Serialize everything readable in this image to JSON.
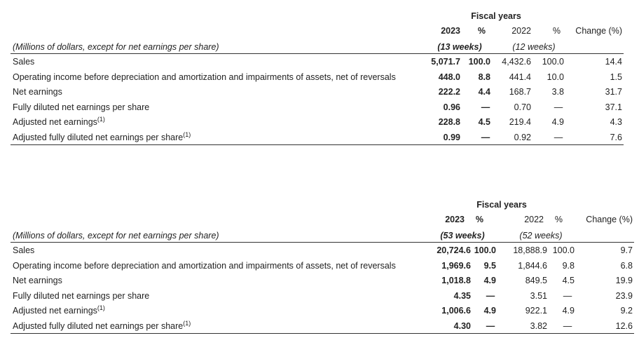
{
  "tables": [
    {
      "title": "Fiscal years",
      "headers": [
        "2023",
        "%",
        "2022",
        "%",
        "Change (%)"
      ],
      "units": "(Millions of dollars, except for net earnings per share)",
      "weeks": [
        "(13 weeks)",
        "(12 weeks)"
      ],
      "rows": [
        {
          "label": "Sales",
          "cells": [
            "5,071.7",
            "100.0",
            "4,432.6",
            "100.0",
            "14.4"
          ]
        },
        {
          "label": "Operating income before depreciation and amortization and impairments of assets, net of reversals",
          "cells": [
            "448.0",
            "8.8",
            "441.4",
            "10.0",
            "1.5"
          ]
        },
        {
          "label": "Net earnings",
          "cells": [
            "222.2",
            "4.4",
            "168.7",
            "3.8",
            "31.7"
          ]
        },
        {
          "label": "Fully diluted net earnings per share",
          "cells": [
            "0.96",
            "—",
            "0.70",
            "—",
            "37.1"
          ]
        },
        {
          "label": "Adjusted net earnings",
          "note": "(1)",
          "cells": [
            "228.8",
            "4.5",
            "219.4",
            "4.9",
            "4.3"
          ]
        },
        {
          "label": "Adjusted fully diluted net earnings per share",
          "note": "(1)",
          "cells": [
            "0.99",
            "—",
            "0.92",
            "—",
            "7.6"
          ]
        }
      ]
    },
    {
      "title": "Fiscal years",
      "headers": [
        "2023",
        "%",
        "2022",
        "%",
        "Change (%)"
      ],
      "units": "(Millions of dollars, except for net earnings per share)",
      "weeks": [
        "(53 weeks)",
        "(52 weeks)"
      ],
      "rows": [
        {
          "label": "Sales",
          "cells": [
            "20,724.6",
            "100.0",
            "18,888.9",
            "100.0",
            "9.7"
          ]
        },
        {
          "label": "Operating income before depreciation and amortization and impairments of assets, net of reversals",
          "cells": [
            "1,969.6",
            "9.5",
            "1,844.6",
            "9.8",
            "6.8"
          ]
        },
        {
          "label": "Net earnings",
          "cells": [
            "1,018.8",
            "4.9",
            "849.5",
            "4.5",
            "19.9"
          ]
        },
        {
          "label": "Fully diluted net earnings per share",
          "cells": [
            "4.35",
            "—",
            "3.51",
            "—",
            "23.9"
          ]
        },
        {
          "label": "Adjusted net earnings",
          "note": "(1)",
          "cells": [
            "1,006.6",
            "4.9",
            "922.1",
            "4.9",
            "9.2"
          ]
        },
        {
          "label": "Adjusted fully diluted net earnings per share",
          "note": "(1)",
          "cells": [
            "4.30",
            "—",
            "3.82",
            "—",
            "12.6"
          ]
        }
      ]
    }
  ]
}
